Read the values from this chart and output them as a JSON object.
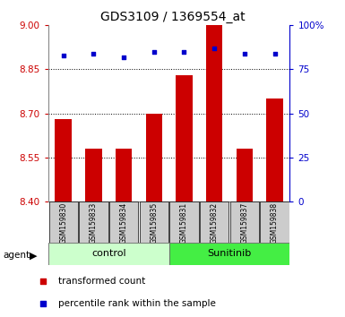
{
  "title": "GDS3109 / 1369554_at",
  "samples": [
    "GSM159830",
    "GSM159833",
    "GSM159834",
    "GSM159835",
    "GSM159831",
    "GSM159832",
    "GSM159837",
    "GSM159838"
  ],
  "bar_values": [
    8.68,
    8.58,
    8.58,
    8.7,
    8.83,
    9.0,
    8.58,
    8.75
  ],
  "percentile_values": [
    83,
    84,
    82,
    85,
    85,
    87,
    84,
    84
  ],
  "bar_bottom": 8.4,
  "ylim_left": [
    8.4,
    9.0
  ],
  "ylim_right": [
    0,
    100
  ],
  "yticks_left": [
    8.4,
    8.55,
    8.7,
    8.85,
    9.0
  ],
  "yticks_right": [
    0,
    25,
    50,
    75,
    100
  ],
  "ytick_labels_right": [
    "0",
    "25",
    "50",
    "75",
    "100%"
  ],
  "hlines": [
    8.55,
    8.7,
    8.85
  ],
  "bar_color": "#cc0000",
  "dot_color": "#0000cc",
  "bar_width": 0.55,
  "groups": [
    {
      "label": "control",
      "indices": [
        0,
        1,
        2,
        3
      ],
      "color": "#ccffcc",
      "edge_color": "#88cc88"
    },
    {
      "label": "Sunitinib",
      "indices": [
        4,
        5,
        6,
        7
      ],
      "color": "#44ee44",
      "edge_color": "#22aa22"
    }
  ],
  "agent_label": "agent",
  "legend_items": [
    {
      "color": "#cc0000",
      "label": "transformed count"
    },
    {
      "color": "#0000cc",
      "label": "percentile rank within the sample"
    }
  ],
  "tick_color_left": "#cc0000",
  "tick_color_right": "#0000cc",
  "bg_xtick": "#cccccc"
}
